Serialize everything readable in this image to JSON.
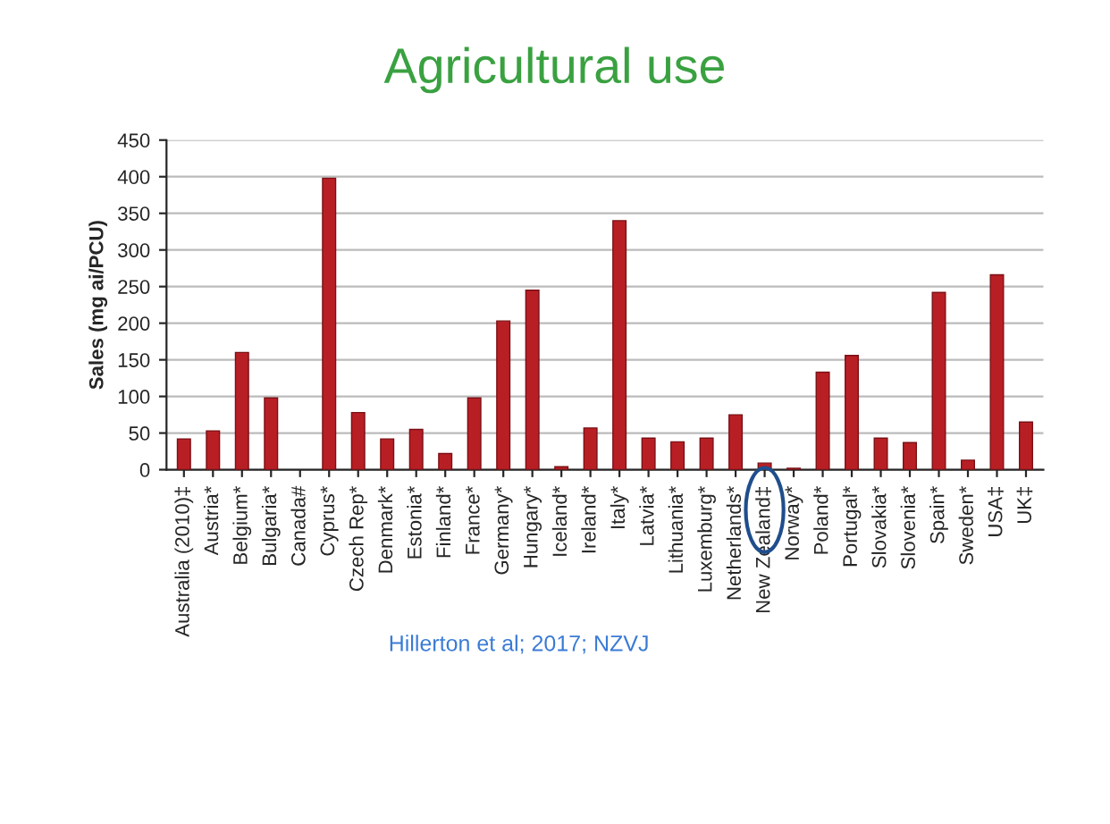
{
  "chart_data": {
    "type": "bar",
    "title": "Agricultural use",
    "ylabel": "Sales (mg ai/PCU)",
    "categories": [
      "Australia (2010)‡",
      "Austria*",
      "Belgium*",
      "Bulgaria*",
      "Canada#",
      "Cyprus*",
      "Czech Rep*",
      "Denmark*",
      "Estonia*",
      "Finland*",
      "France*",
      "Germany*",
      "Hungary*",
      "Iceland*",
      "Ireland*",
      "Italy*",
      "Latvia*",
      "Lithuania*",
      "Luxemburg*",
      "Netherlands*",
      "New Zealand‡",
      "Norway*",
      "Poland*",
      "Portugal*",
      "Slovakia*",
      "Slovenia*",
      "Spain*",
      "Sweden*",
      "USA‡",
      "UK‡"
    ],
    "values": [
      42,
      53,
      160,
      98,
      null,
      398,
      78,
      42,
      55,
      22,
      98,
      203,
      245,
      4,
      57,
      340,
      43,
      38,
      43,
      75,
      9,
      2,
      133,
      156,
      43,
      37,
      242,
      13,
      266,
      65
    ],
    "color": "#b81f24",
    "ylim": [
      0,
      450
    ],
    "yticks": [
      0,
      50,
      100,
      150,
      200,
      250,
      300,
      350,
      400,
      450
    ],
    "grid": "y",
    "annotations": [
      "Hillerton et al; 2017; NZVJ"
    ]
  }
}
